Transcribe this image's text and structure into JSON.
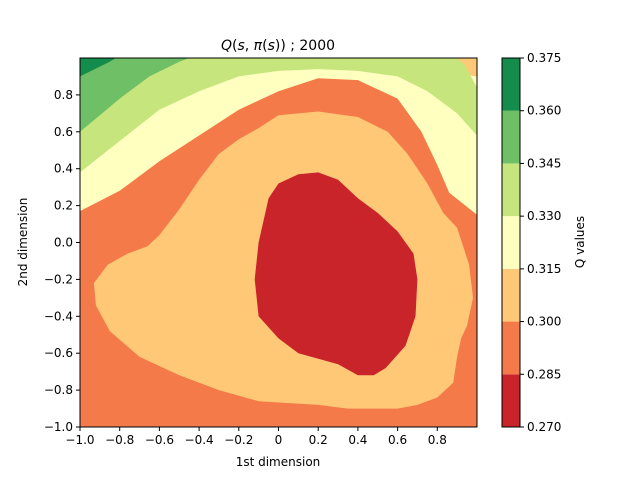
{
  "chart_data": {
    "type": "contourf",
    "title": "Q(s,π(s)) ;  2000",
    "title_parts": {
      "q": "Q",
      "s1": "s",
      "pi": "π",
      "s2": "s",
      "suffix": ";  2000"
    },
    "xlabel": "1st dimension",
    "ylabel": "2nd dimension",
    "xlim": [
      -1.0,
      1.0
    ],
    "ylim": [
      -1.0,
      1.0
    ],
    "x_ticks": [
      "−1.0",
      "−0.8",
      "−0.6",
      "−0.4",
      "−0.2",
      "0",
      "0.2",
      "0.4",
      "0.6",
      "0.8"
    ],
    "y_ticks": [
      "−1.0",
      "−0.8",
      "−0.6",
      "−0.4",
      "−0.2",
      "0.0",
      "0.2",
      "0.4",
      "0.6",
      "0.8"
    ],
    "colorbar": {
      "label": "Q values",
      "levels": [
        0.27,
        0.285,
        0.3,
        0.315,
        0.33,
        0.345,
        0.36,
        0.375
      ],
      "tick_labels": [
        "0.270",
        "0.285",
        "0.300",
        "0.315",
        "0.330",
        "0.345",
        "0.360",
        "0.375"
      ],
      "colors": [
        "#c9242a",
        "#f47a4a",
        "#fec877",
        "#ffffc0",
        "#c6e67d",
        "#6ebf66",
        "#148c4b"
      ]
    },
    "regions": [
      {
        "level_index": 1,
        "polygon": [
          [
            -1.0,
            -1.0
          ],
          [
            1.0,
            -1.0
          ],
          [
            1.0,
            0.9
          ],
          [
            0.6,
            0.96
          ],
          [
            0.2,
            0.98
          ],
          [
            -0.2,
            0.92
          ],
          [
            -0.5,
            0.82
          ],
          [
            -0.8,
            0.7
          ],
          [
            -1.0,
            0.63
          ]
        ]
      },
      {
        "level_index": 2,
        "polygon": [
          [
            -0.92,
            -0.34
          ],
          [
            -0.93,
            -0.22
          ],
          [
            -0.86,
            -0.12
          ],
          [
            -0.76,
            -0.06
          ],
          [
            -0.66,
            -0.02
          ],
          [
            -0.6,
            0.04
          ],
          [
            -0.5,
            0.18
          ],
          [
            -0.4,
            0.34
          ],
          [
            -0.3,
            0.48
          ],
          [
            -0.2,
            0.56
          ],
          [
            -0.1,
            0.62
          ],
          [
            0.0,
            0.69
          ],
          [
            0.2,
            0.71
          ],
          [
            0.4,
            0.68
          ],
          [
            0.55,
            0.6
          ],
          [
            0.65,
            0.48
          ],
          [
            0.75,
            0.32
          ],
          [
            0.83,
            0.16
          ],
          [
            0.9,
            0.08
          ],
          [
            0.96,
            -0.12
          ],
          [
            0.98,
            -0.3
          ],
          [
            0.95,
            -0.45
          ],
          [
            0.92,
            -0.52
          ],
          [
            0.9,
            -0.62
          ],
          [
            0.88,
            -0.76
          ],
          [
            0.8,
            -0.84
          ],
          [
            0.7,
            -0.88
          ],
          [
            0.6,
            -0.9
          ],
          [
            0.35,
            -0.9
          ],
          [
            0.2,
            -0.88
          ],
          [
            -0.1,
            -0.86
          ],
          [
            -0.3,
            -0.8
          ],
          [
            -0.5,
            -0.72
          ],
          [
            -0.7,
            -0.62
          ],
          [
            -0.85,
            -0.48
          ]
        ]
      },
      {
        "level_index": 0,
        "polygon": [
          [
            -0.1,
            0.0
          ],
          [
            -0.05,
            0.24
          ],
          [
            0.0,
            0.32
          ],
          [
            0.1,
            0.37
          ],
          [
            0.2,
            0.38
          ],
          [
            0.3,
            0.34
          ],
          [
            0.4,
            0.24
          ],
          [
            0.5,
            0.16
          ],
          [
            0.6,
            0.06
          ],
          [
            0.68,
            -0.06
          ],
          [
            0.7,
            -0.2
          ],
          [
            0.69,
            -0.4
          ],
          [
            0.64,
            -0.56
          ],
          [
            0.54,
            -0.68
          ],
          [
            0.48,
            -0.72
          ],
          [
            0.4,
            -0.72
          ],
          [
            0.3,
            -0.66
          ],
          [
            0.1,
            -0.6
          ],
          [
            0.0,
            -0.52
          ],
          [
            -0.1,
            -0.4
          ],
          [
            -0.12,
            -0.2
          ]
        ]
      },
      {
        "level_index": 3,
        "polygon": [
          [
            -1.0,
            0.63
          ],
          [
            -1.0,
            0.17
          ],
          [
            -0.8,
            0.28
          ],
          [
            -0.6,
            0.44
          ],
          [
            -0.4,
            0.58
          ],
          [
            -0.2,
            0.72
          ],
          [
            0.0,
            0.82
          ],
          [
            0.2,
            0.89
          ],
          [
            0.4,
            0.88
          ],
          [
            0.6,
            0.78
          ],
          [
            0.72,
            0.6
          ],
          [
            0.8,
            0.42
          ],
          [
            0.86,
            0.27
          ],
          [
            1.0,
            0.15
          ],
          [
            1.0,
            0.9
          ],
          [
            0.6,
            0.96
          ],
          [
            0.2,
            0.98
          ],
          [
            -0.2,
            0.92
          ],
          [
            -0.5,
            0.82
          ],
          [
            -0.8,
            0.7
          ]
        ]
      },
      {
        "level_index": 4,
        "polygon": [
          [
            -1.0,
            1.0
          ],
          [
            -1.0,
            0.38
          ],
          [
            -0.8,
            0.55
          ],
          [
            -0.6,
            0.72
          ],
          [
            -0.4,
            0.82
          ],
          [
            -0.2,
            0.9
          ],
          [
            0.0,
            0.93
          ],
          [
            0.2,
            0.94
          ],
          [
            0.4,
            0.93
          ],
          [
            0.6,
            0.9
          ],
          [
            0.75,
            0.82
          ],
          [
            0.9,
            0.7
          ],
          [
            1.0,
            0.58
          ],
          [
            1.0,
            0.84
          ],
          [
            0.94,
            0.96
          ],
          [
            0.9,
            1.0
          ]
        ]
      },
      {
        "level_index": 5,
        "polygon": [
          [
            -1.0,
            1.0
          ],
          [
            -1.0,
            0.6
          ],
          [
            -0.8,
            0.78
          ],
          [
            -0.65,
            0.9
          ],
          [
            -0.5,
            0.98
          ],
          [
            -0.45,
            1.0
          ]
        ]
      },
      {
        "level_index": 6,
        "polygon": [
          [
            -1.0,
            1.0
          ],
          [
            -1.0,
            0.9
          ],
          [
            -0.85,
            0.98
          ],
          [
            -0.82,
            1.0
          ]
        ]
      }
    ]
  }
}
